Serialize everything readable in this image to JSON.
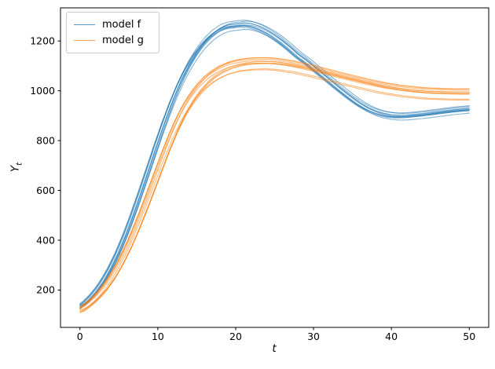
{
  "figure": {
    "background": "#ffffff",
    "axes_box_color": "#000000",
    "xlabel": "t",
    "ylabel_main": "Y",
    "ylabel_sub": "t",
    "grid": false
  },
  "chart_data": {
    "type": "line",
    "title": "",
    "xlabel": "t",
    "ylabel": "Y_t",
    "xlim": [
      -2.5,
      52.5
    ],
    "ylim": [
      50,
      1333
    ],
    "xticks": [
      0,
      10,
      20,
      30,
      40,
      50
    ],
    "yticks": [
      200,
      400,
      600,
      800,
      1000,
      1200
    ],
    "legend_position": "upper left",
    "x": [
      0,
      1,
      2,
      3,
      4,
      5,
      6,
      7,
      8,
      9,
      10,
      11,
      12,
      13,
      14,
      15,
      16,
      17,
      18,
      19,
      20,
      21,
      22,
      23,
      24,
      25,
      26,
      27,
      28,
      29,
      30,
      31,
      32,
      33,
      34,
      35,
      36,
      37,
      38,
      39,
      40,
      41,
      42,
      43,
      44,
      45,
      46,
      47,
      48,
      49,
      50
    ],
    "series": [
      {
        "name": "model f",
        "color": "#1f77b4",
        "alpha": 0.55,
        "ensemble_lines": 10,
        "values": [
          132,
          158,
          192,
          236,
          291,
          356,
          432,
          517,
          608,
          702,
          796,
          886,
          969,
          1042,
          1104,
          1155,
          1196,
          1227,
          1249,
          1262,
          1266,
          1270,
          1267,
          1257,
          1242,
          1223,
          1200,
          1174,
          1146,
          1124,
          1098,
          1072,
          1046,
          1020,
          995,
          971,
          949,
          931,
          917,
          908,
          902,
          900,
          901,
          904,
          907,
          911,
          915,
          919,
          923,
          926,
          929
        ]
      },
      {
        "name": "model g",
        "color": "#ff7f0e",
        "alpha": 0.55,
        "ensemble_lines": 10,
        "values": [
          118,
          140,
          168,
          203,
          247,
          300,
          362,
          433,
          510,
          592,
          675,
          757,
          833,
          899,
          953,
          996,
          1030,
          1056,
          1075,
          1089,
          1098,
          1104,
          1107,
          1108,
          1108,
          1106,
          1102,
          1097,
          1091,
          1084,
          1077,
          1069,
          1061,
          1053,
          1045,
          1038,
          1030,
          1023,
          1016,
          1010,
          1005,
          1000,
          996,
          993,
          990,
          988,
          987,
          986,
          985,
          985,
          985
        ]
      }
    ]
  }
}
